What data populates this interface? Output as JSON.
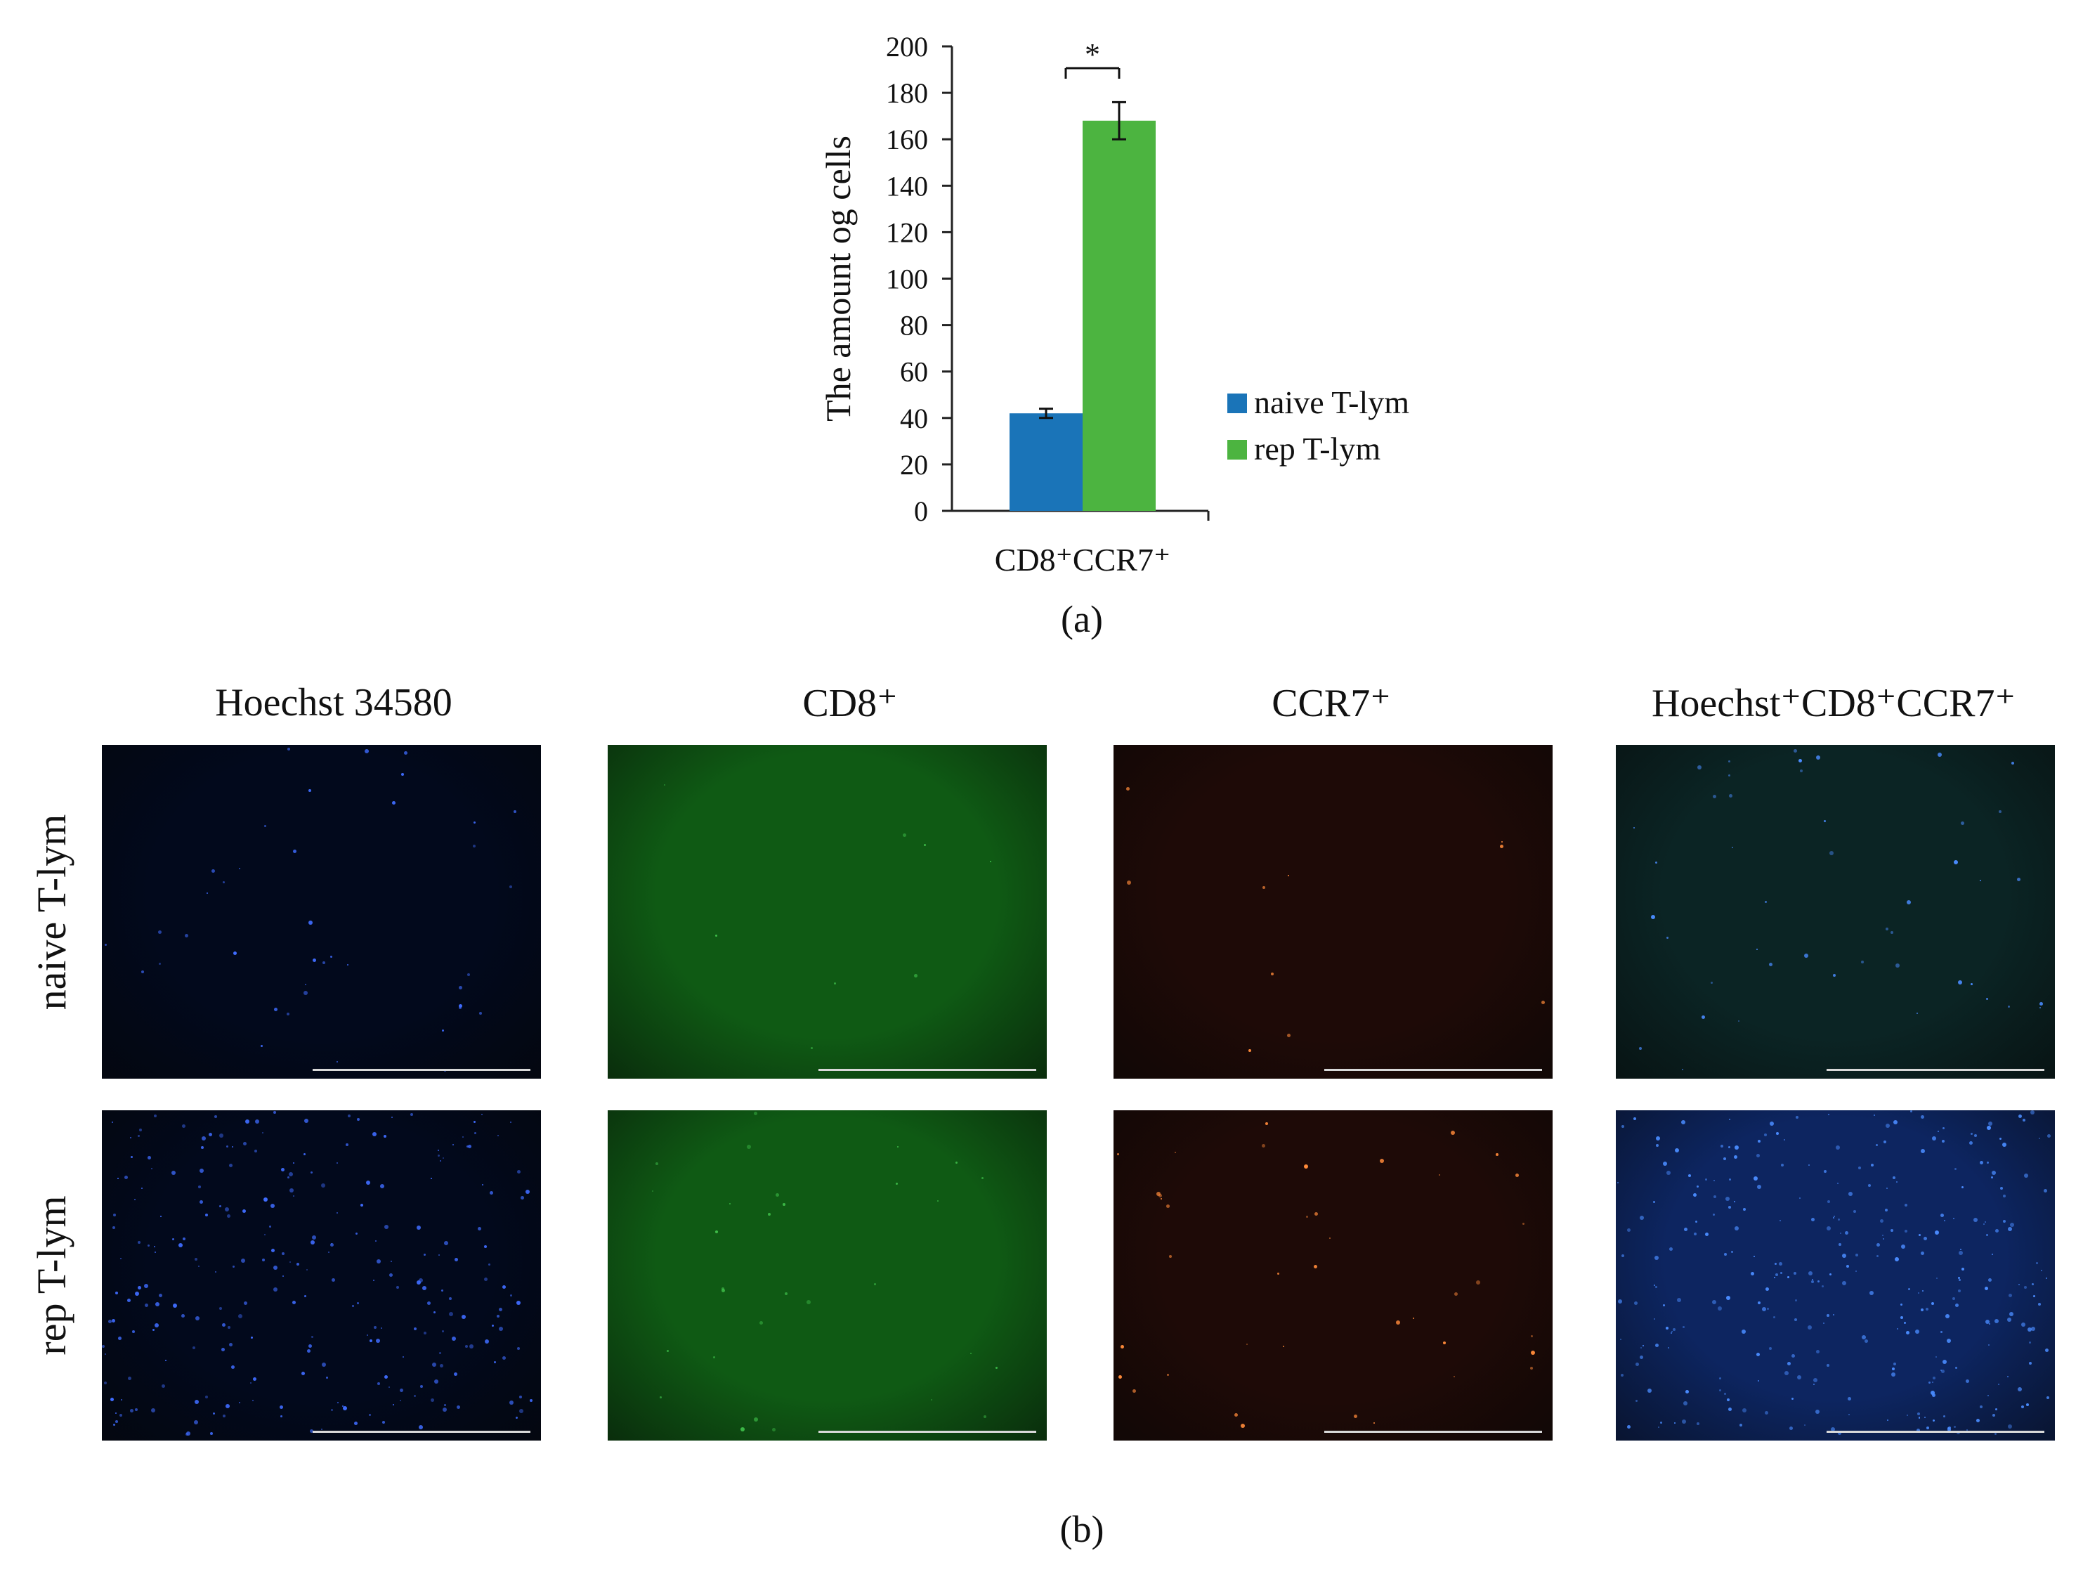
{
  "chart_data": {
    "type": "bar",
    "categories": [
      "CD8⁺CCR7⁺"
    ],
    "series": [
      {
        "name": "naive T-lym",
        "values": [
          42
        ],
        "error": [
          2
        ],
        "color": "#1a74b8"
      },
      {
        "name": "rep T-lym",
        "values": [
          168
        ],
        "error": [
          8
        ],
        "color": "#4cb440"
      }
    ],
    "ylabel": "The amount  og cells",
    "xlabel": "",
    "ylim": [
      0,
      200
    ],
    "yticks": [
      0,
      20,
      40,
      60,
      80,
      100,
      120,
      140,
      160,
      180,
      200
    ],
    "legend_position": "right",
    "significance": "*"
  },
  "panel_labels": {
    "a": "(a)",
    "b": "(b)"
  },
  "micrograph_grid": {
    "columns": [
      {
        "title": "Hoechst 34580"
      },
      {
        "title": "CD8⁺"
      },
      {
        "title": "CCR7⁺"
      },
      {
        "title": "Hoechst⁺CD8⁺CCR7⁺"
      }
    ],
    "rows": [
      {
        "label": "naive T-lym"
      },
      {
        "label": "rep T-lym"
      }
    ],
    "channel_colors": {
      "hoechst_bg": "#02091c",
      "hoechst_dot": "#3f6cff",
      "cd8_bg": "#0f5a14",
      "cd8_dot": "#3fbf4a",
      "ccr7_bg": "#1e0a07",
      "ccr7_dot": "#ff8a3a",
      "merge_bg": "#0b2424",
      "merge_bg_rep": "#0d2560",
      "merge_dot": "#4a8cff"
    }
  }
}
